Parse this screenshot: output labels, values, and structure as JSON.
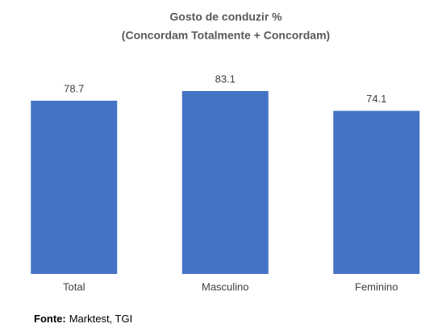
{
  "chart_data": {
    "type": "bar",
    "title": [
      "Gosto de conduzir  %",
      "(Concordam Totalmente + Concordam)"
    ],
    "categories": [
      "Total",
      "Masculino",
      "Feminino"
    ],
    "values": [
      78.7,
      83.1,
      74.1
    ],
    "color": "#4472c4",
    "source": {
      "label": "Fonte:",
      "text": "Marktest, TGI"
    }
  }
}
